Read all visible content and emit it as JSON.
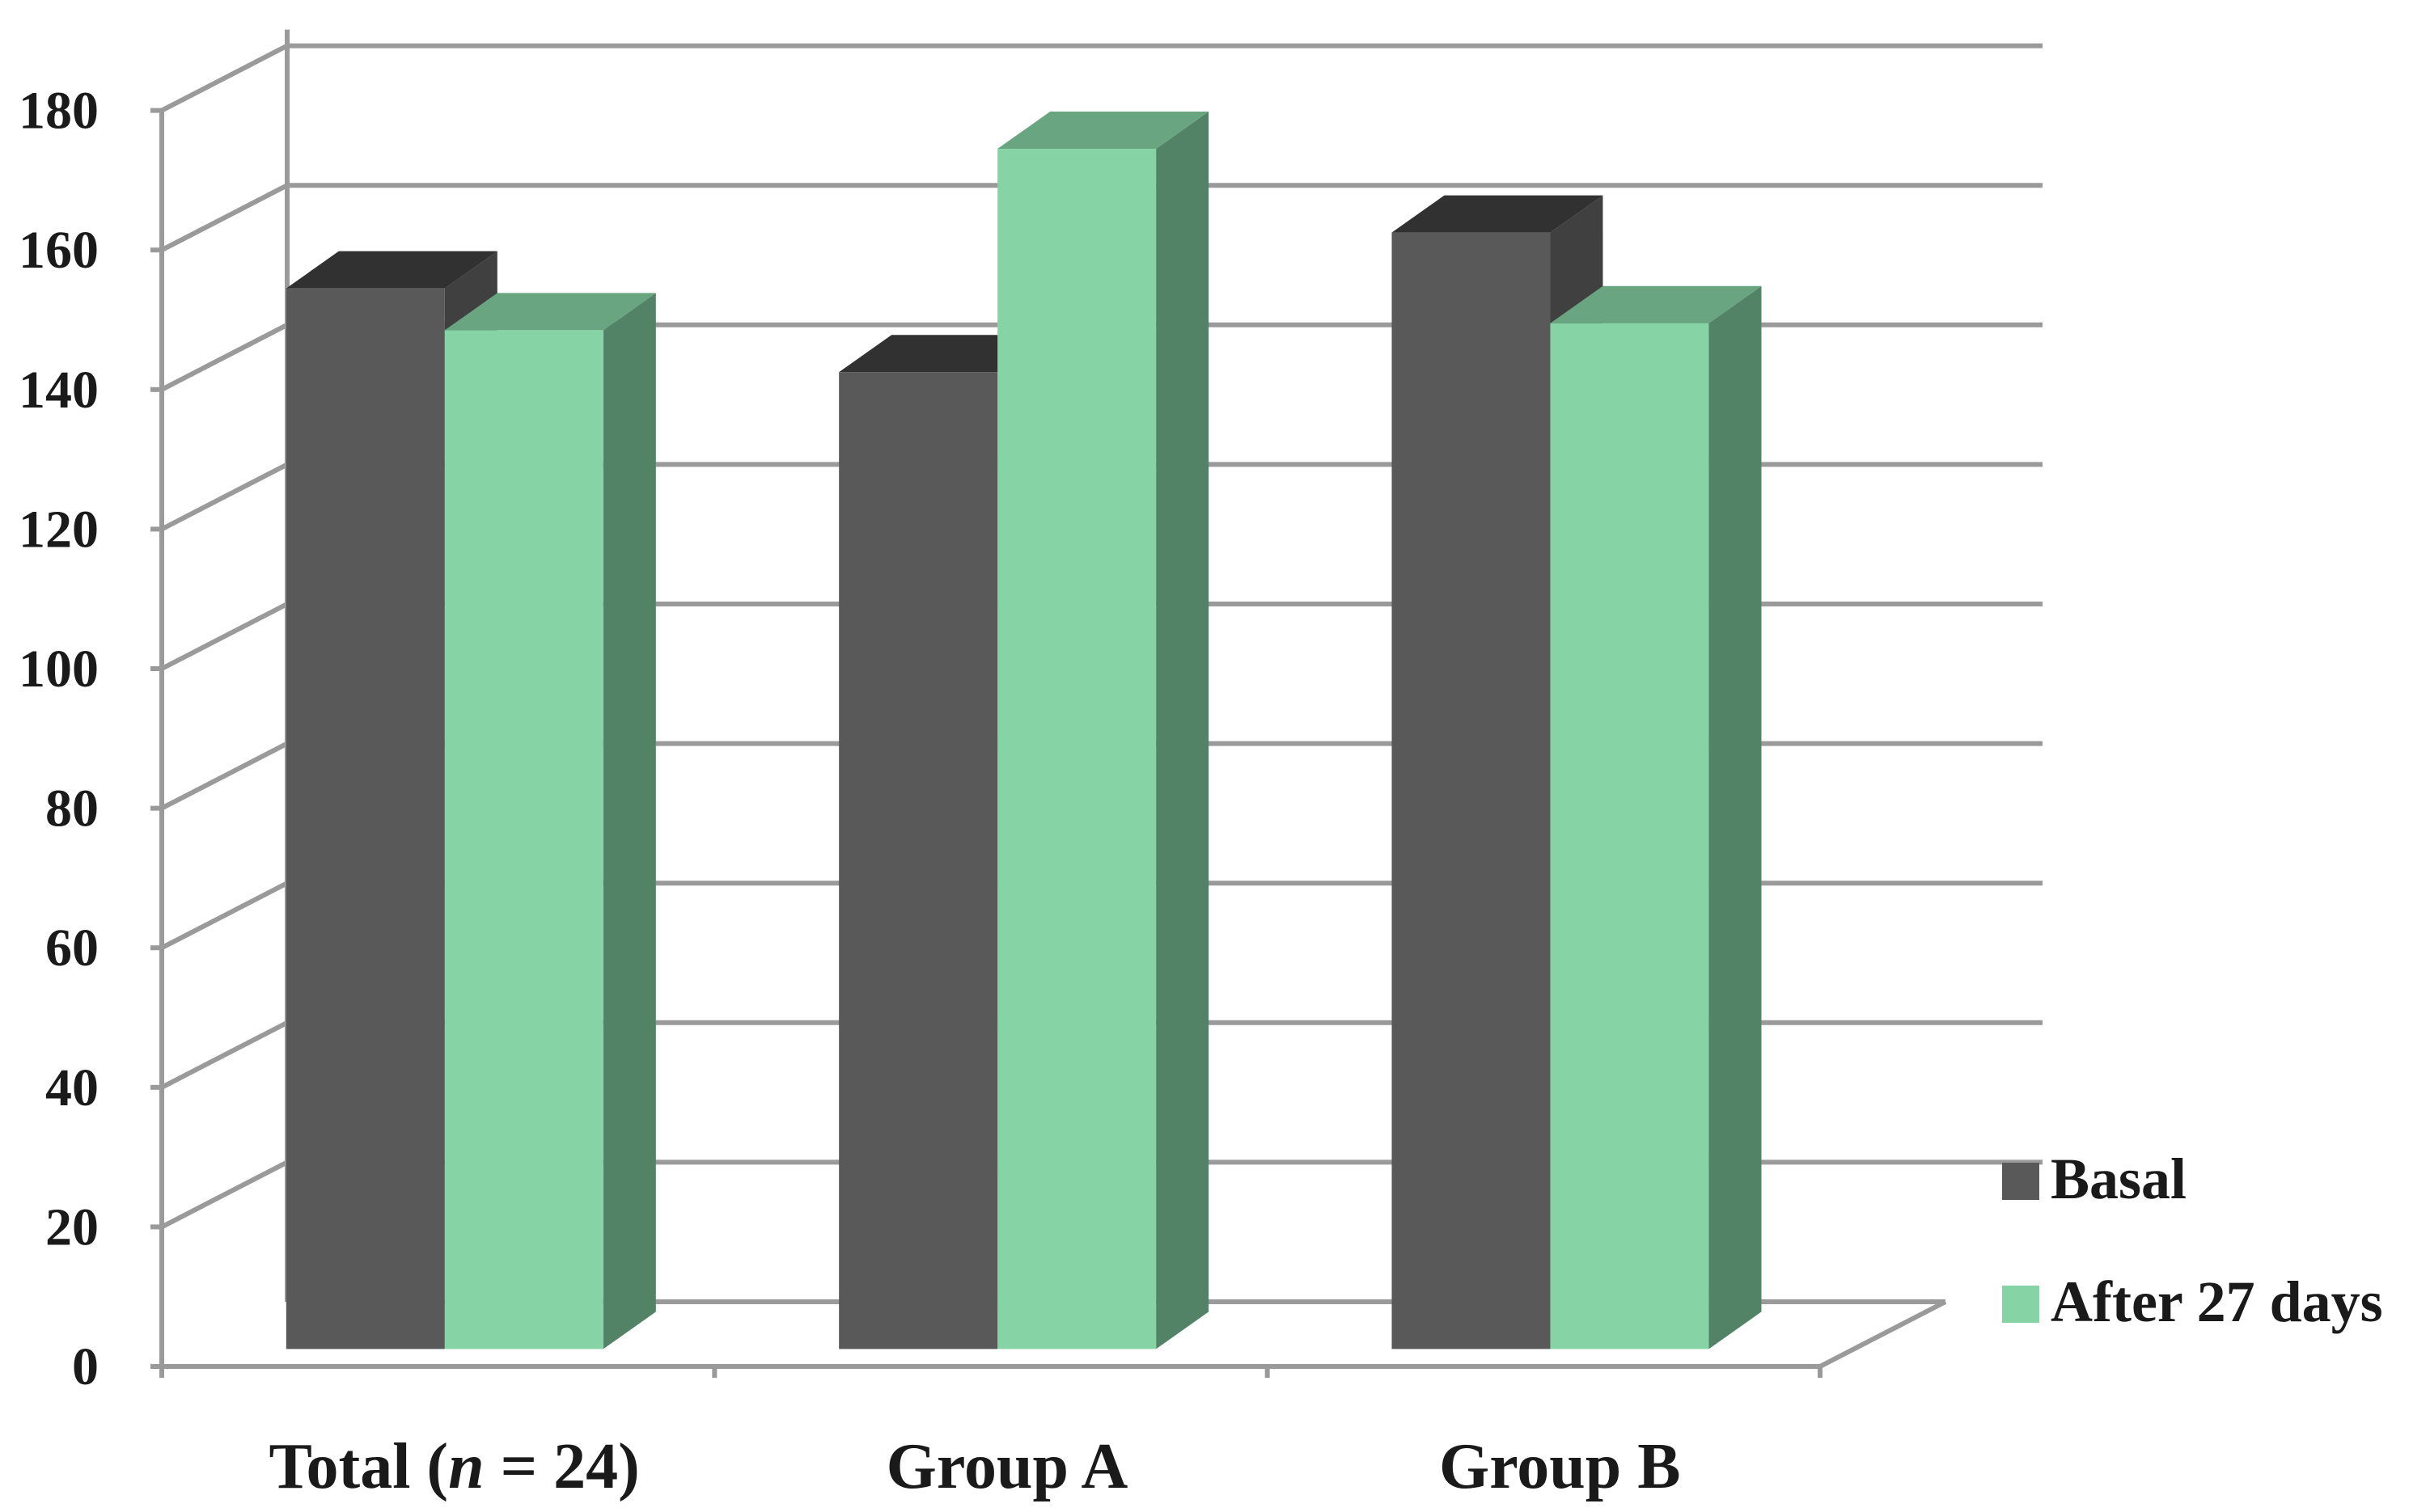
{
  "chart_data": {
    "type": "bar",
    "title": "",
    "xlabel": "",
    "ylabel": "",
    "ylim": [
      0,
      180
    ],
    "y_ticks": [
      0,
      20,
      40,
      60,
      80,
      100,
      120,
      140,
      160,
      180
    ],
    "grid": true,
    "legend_position": "right",
    "style": "3d-clustered-column",
    "categories": [
      {
        "prefix": "Total (",
        "italic": "n",
        "suffix": " = 24)"
      },
      {
        "prefix": "Group A",
        "italic": "",
        "suffix": ""
      },
      {
        "prefix": "Group B",
        "italic": "",
        "suffix": ""
      }
    ],
    "series": [
      {
        "name": "Basal",
        "values": [
          152,
          140,
          160
        ],
        "color": "#595959"
      },
      {
        "name": "After 27 days",
        "values": [
          146,
          172,
          147
        ],
        "color": "#86d4a6"
      }
    ]
  }
}
